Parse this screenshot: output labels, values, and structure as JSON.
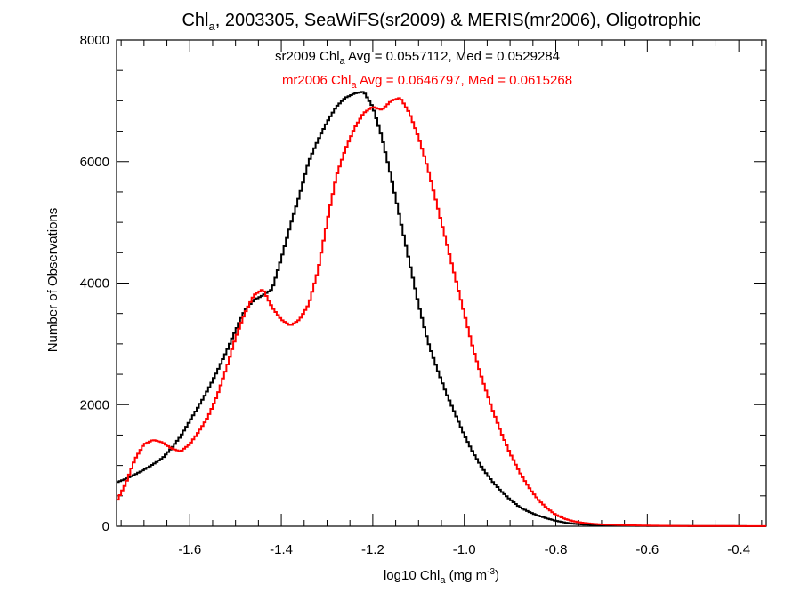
{
  "chart_data": {
    "type": "line",
    "step": true,
    "title_parts": {
      "pre": "Chl",
      "sub": "a",
      "post": ", 2003305, SeaWiFS(sr2009) & MERIS(mr2006), Oligotrophic"
    },
    "xlabel_parts": {
      "pre": "log10 Chl",
      "sub": "a",
      "mid": " (mg m",
      "sup": "-3",
      "post": ")"
    },
    "ylabel": "Number of Observations",
    "xlim": [
      -1.76,
      -0.34
    ],
    "ylim": [
      0,
      8000
    ],
    "x_ticks": [
      -1.6,
      -1.4,
      -1.2,
      -1.0,
      -0.8,
      -0.6,
      -0.4
    ],
    "x_tick_labels": [
      "-1.6",
      "-1.4",
      "-1.2",
      "-1.0",
      "-0.8",
      "-0.6",
      "-0.4"
    ],
    "y_ticks": [
      0,
      2000,
      4000,
      6000,
      8000
    ],
    "y_tick_labels": [
      "0",
      "2000",
      "4000",
      "6000",
      "8000"
    ],
    "annotations": [
      {
        "pre": "sr2009 Chl",
        "sub": "a",
        "post": " Avg = 0.0557112, Med = 0.0529284",
        "color": "#000000"
      },
      {
        "pre": "mr2006 Chl",
        "sub": "a",
        "post": " Avg = 0.0646797, Med = 0.0615268",
        "color": "#ff0000"
      }
    ],
    "series": [
      {
        "color": "#000000",
        "x": [
          -1.76,
          -1.74,
          -1.72,
          -1.7,
          -1.68,
          -1.66,
          -1.64,
          -1.62,
          -1.6,
          -1.58,
          -1.56,
          -1.54,
          -1.52,
          -1.5,
          -1.48,
          -1.46,
          -1.44,
          -1.42,
          -1.4,
          -1.38,
          -1.36,
          -1.34,
          -1.32,
          -1.3,
          -1.28,
          -1.26,
          -1.24,
          -1.22,
          -1.2,
          -1.18,
          -1.16,
          -1.14,
          -1.12,
          -1.1,
          -1.08,
          -1.06,
          -1.04,
          -1.02,
          -1.0,
          -0.98,
          -0.96,
          -0.94,
          -0.92,
          -0.9,
          -0.88,
          -0.86,
          -0.84,
          -0.82,
          -0.8,
          -0.78,
          -0.76,
          -0.74,
          -0.72,
          -0.7,
          -0.65,
          -0.6,
          -0.55,
          -0.5,
          -0.45,
          -0.4,
          -0.34
        ],
        "y": [
          720,
          780,
          850,
          930,
          1020,
          1120,
          1280,
          1480,
          1730,
          1980,
          2250,
          2550,
          2870,
          3220,
          3550,
          3720,
          3800,
          3900,
          4400,
          4950,
          5450,
          6000,
          6350,
          6650,
          6900,
          7050,
          7120,
          7150,
          6900,
          6400,
          5750,
          5050,
          4350,
          3650,
          3050,
          2600,
          2200,
          1850,
          1500,
          1200,
          950,
          750,
          580,
          440,
          320,
          240,
          180,
          130,
          90,
          60,
          40,
          28,
          20,
          14,
          8,
          5,
          3,
          2,
          1,
          1,
          0
        ]
      },
      {
        "color": "#ff0000",
        "x": [
          -1.76,
          -1.74,
          -1.72,
          -1.7,
          -1.68,
          -1.66,
          -1.64,
          -1.62,
          -1.6,
          -1.58,
          -1.56,
          -1.54,
          -1.52,
          -1.5,
          -1.48,
          -1.46,
          -1.44,
          -1.42,
          -1.4,
          -1.38,
          -1.36,
          -1.34,
          -1.32,
          -1.3,
          -1.28,
          -1.26,
          -1.24,
          -1.22,
          -1.2,
          -1.18,
          -1.16,
          -1.14,
          -1.12,
          -1.1,
          -1.08,
          -1.06,
          -1.04,
          -1.02,
          -1.0,
          -0.98,
          -0.96,
          -0.94,
          -0.92,
          -0.9,
          -0.88,
          -0.86,
          -0.84,
          -0.82,
          -0.8,
          -0.78,
          -0.76,
          -0.74,
          -0.72,
          -0.7,
          -0.65,
          -0.6,
          -0.55,
          -0.5,
          -0.45,
          -0.4,
          -0.34
        ],
        "y": [
          400,
          700,
          1100,
          1350,
          1420,
          1380,
          1280,
          1230,
          1350,
          1560,
          1800,
          2150,
          2600,
          3100,
          3500,
          3800,
          3900,
          3600,
          3400,
          3300,
          3400,
          3650,
          4200,
          5000,
          5750,
          6200,
          6550,
          6800,
          6900,
          6850,
          7000,
          7050,
          6800,
          6400,
          5900,
          5300,
          4700,
          4100,
          3500,
          2900,
          2400,
          1950,
          1550,
          1200,
          900,
          650,
          450,
          300,
          190,
          120,
          80,
          55,
          40,
          30,
          18,
          10,
          6,
          4,
          3,
          2,
          1
        ]
      }
    ]
  }
}
